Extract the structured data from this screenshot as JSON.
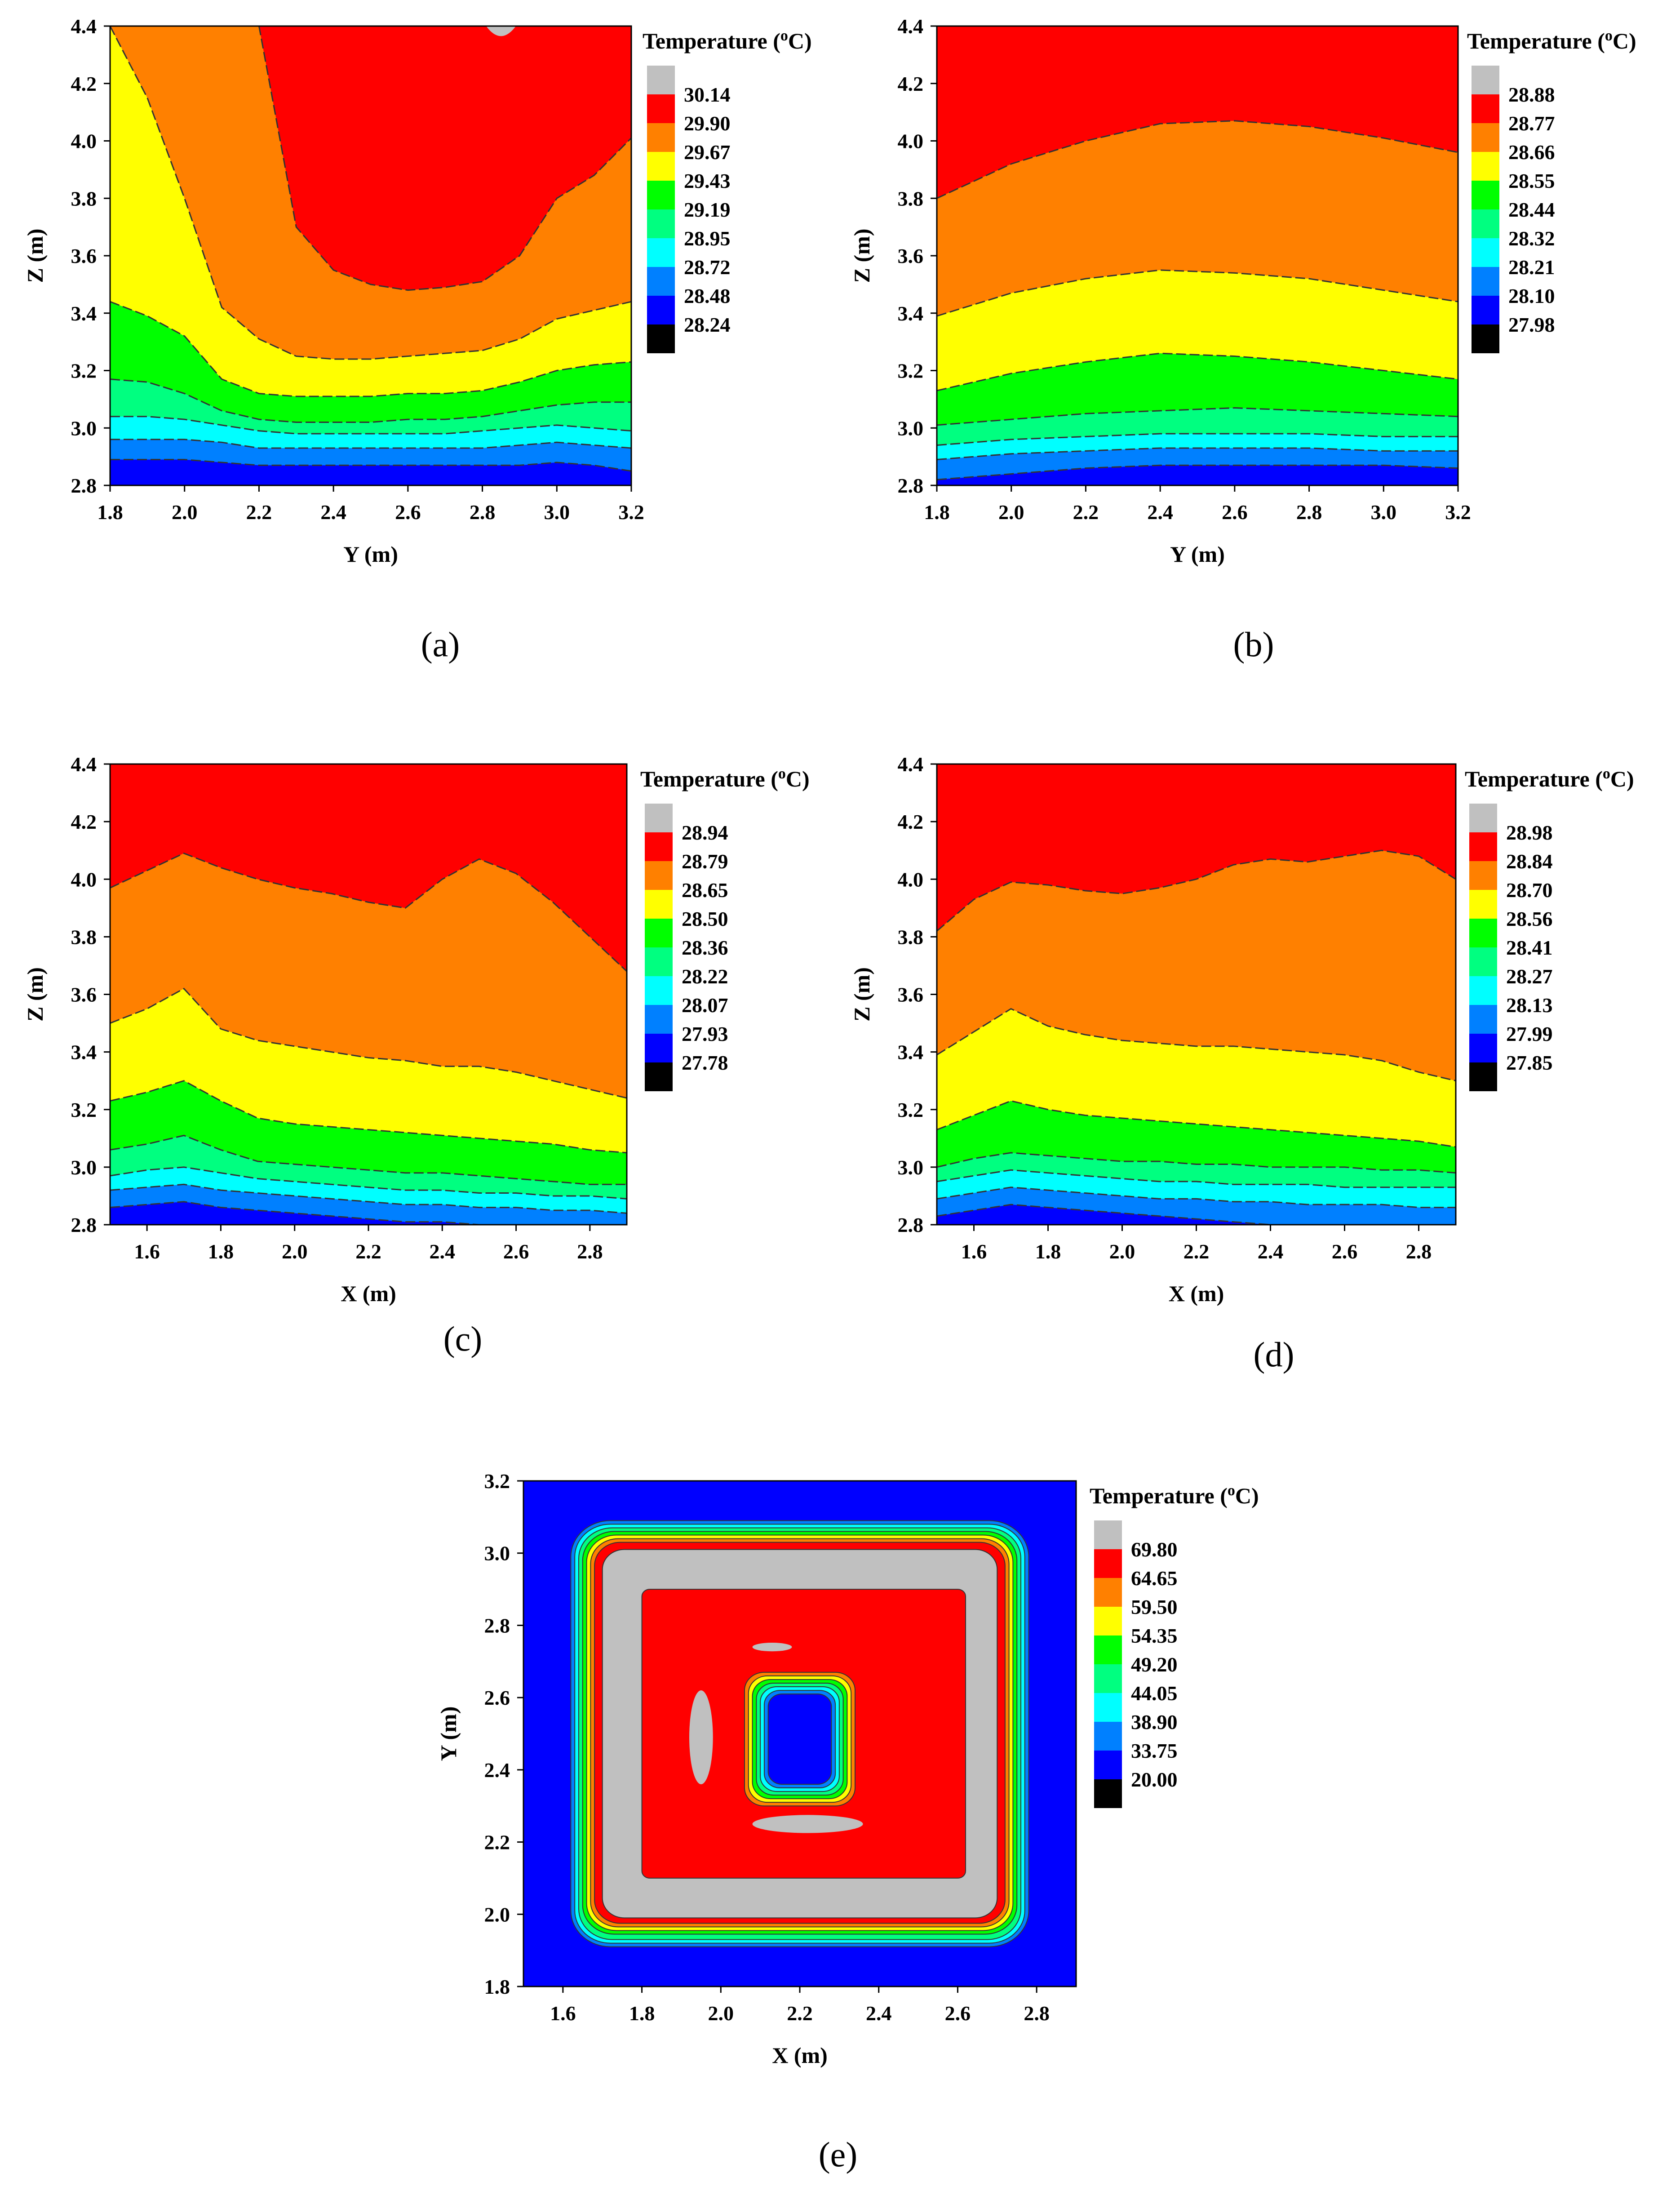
{
  "figure": {
    "captions": [
      "(a)",
      "(b)",
      "(c)",
      "(d)",
      "(e)"
    ]
  },
  "colors": {
    "bands": [
      "#000000",
      "#0000ff",
      "#0080ff",
      "#00ffff",
      "#00ff80",
      "#00ff00",
      "#ffff00",
      "#ff8000",
      "#ff0000",
      "#c0c0c0"
    ],
    "contour": "#333333"
  },
  "chart_data": [
    {
      "id": "a",
      "type": "heatmap",
      "subtype": "filled-contour",
      "caption": "(a)",
      "xlabel": "Y (m)",
      "ylabel": "Z (m)",
      "xlim": [
        1.8,
        3.2
      ],
      "ylim": [
        2.8,
        4.4
      ],
      "xticks": [
        "1.8",
        "2.0",
        "2.2",
        "2.4",
        "2.6",
        "2.8",
        "3.0",
        "3.2"
      ],
      "yticks": [
        "2.8",
        "3.0",
        "3.2",
        "3.4",
        "3.6",
        "3.8",
        "4.0",
        "4.2",
        "4.4"
      ],
      "legend_title": "Temperature (°C)",
      "levels": [
        "30.14",
        "29.90",
        "29.67",
        "29.43",
        "29.19",
        "28.95",
        "28.72",
        "28.48",
        "28.24"
      ],
      "band_boundaries_x": [
        1.8,
        1.9,
        2.0,
        2.1,
        2.2,
        2.3,
        2.4,
        2.5,
        2.6,
        2.7,
        2.8,
        2.9,
        3.0,
        3.1,
        3.2
      ],
      "band_boundaries_z": [
        [
          2.89,
          2.89,
          2.89,
          2.88,
          2.87,
          2.87,
          2.87,
          2.87,
          2.87,
          2.87,
          2.87,
          2.87,
          2.88,
          2.87,
          2.85
        ],
        [
          2.96,
          2.96,
          2.96,
          2.95,
          2.93,
          2.93,
          2.93,
          2.93,
          2.93,
          2.93,
          2.93,
          2.94,
          2.95,
          2.94,
          2.93
        ],
        [
          3.04,
          3.04,
          3.03,
          3.01,
          2.99,
          2.98,
          2.98,
          2.98,
          2.98,
          2.98,
          2.99,
          3.0,
          3.01,
          3.0,
          2.99
        ],
        [
          3.17,
          3.16,
          3.12,
          3.06,
          3.03,
          3.02,
          3.02,
          3.02,
          3.03,
          3.03,
          3.04,
          3.06,
          3.08,
          3.09,
          3.09
        ],
        [
          3.44,
          3.39,
          3.32,
          3.17,
          3.12,
          3.11,
          3.11,
          3.11,
          3.12,
          3.12,
          3.13,
          3.16,
          3.2,
          3.22,
          3.23
        ],
        [
          4.4,
          4.15,
          3.8,
          3.42,
          3.31,
          3.25,
          3.24,
          3.24,
          3.25,
          3.26,
          3.27,
          3.31,
          3.38,
          3.41,
          3.44
        ],
        [
          4.4,
          4.4,
          4.4,
          4.4,
          4.4,
          3.7,
          3.55,
          3.5,
          3.48,
          3.49,
          3.51,
          3.6,
          3.8,
          3.88,
          4.01
        ]
      ],
      "band_colors_from_bottom": [
        "#0000ff",
        "#0080ff",
        "#00ffff",
        "#00ff80",
        "#00ff00",
        "#ffff00",
        "#ff8000",
        "#ff0000"
      ]
    },
    {
      "id": "b",
      "type": "heatmap",
      "subtype": "filled-contour",
      "caption": "(b)",
      "xlabel": "Y (m)",
      "ylabel": "Z (m)",
      "xlim": [
        1.8,
        3.2
      ],
      "ylim": [
        2.8,
        4.4
      ],
      "xticks": [
        "1.8",
        "2.0",
        "2.2",
        "2.4",
        "2.6",
        "2.8",
        "3.0",
        "3.2"
      ],
      "yticks": [
        "2.8",
        "3.0",
        "3.2",
        "3.4",
        "3.6",
        "3.8",
        "4.0",
        "4.2",
        "4.4"
      ],
      "legend_title": "Temperature (°C)",
      "levels": [
        "28.88",
        "28.77",
        "28.66",
        "28.55",
        "28.44",
        "28.32",
        "28.21",
        "28.10",
        "27.98"
      ],
      "band_boundaries_x": [
        1.8,
        2.0,
        2.2,
        2.4,
        2.6,
        2.8,
        3.0,
        3.2
      ],
      "band_boundaries_z": [
        [
          2.82,
          2.84,
          2.86,
          2.87,
          2.87,
          2.87,
          2.87,
          2.86
        ],
        [
          2.89,
          2.91,
          2.92,
          2.93,
          2.93,
          2.93,
          2.92,
          2.92
        ],
        [
          2.94,
          2.96,
          2.97,
          2.98,
          2.98,
          2.98,
          2.97,
          2.97
        ],
        [
          3.01,
          3.03,
          3.05,
          3.06,
          3.07,
          3.06,
          3.05,
          3.04
        ],
        [
          3.13,
          3.19,
          3.23,
          3.26,
          3.25,
          3.23,
          3.2,
          3.17
        ],
        [
          3.39,
          3.47,
          3.52,
          3.55,
          3.54,
          3.52,
          3.48,
          3.44
        ],
        [
          3.8,
          3.92,
          4.0,
          4.06,
          4.07,
          4.05,
          4.01,
          3.96
        ]
      ],
      "band_colors_from_bottom": [
        "#0000ff",
        "#0080ff",
        "#00ffff",
        "#00ff80",
        "#00ff00",
        "#ffff00",
        "#ff8000",
        "#ff0000"
      ]
    },
    {
      "id": "c",
      "type": "heatmap",
      "subtype": "filled-contour",
      "caption": "(c)",
      "xlabel": "X (m)",
      "ylabel": "Z (m)",
      "xlim": [
        1.5,
        2.9
      ],
      "ylim": [
        2.8,
        4.4
      ],
      "xticks": [
        "1.6",
        "1.8",
        "2.0",
        "2.2",
        "2.4",
        "2.6",
        "2.8"
      ],
      "yticks": [
        "2.8",
        "3.0",
        "3.2",
        "3.4",
        "3.6",
        "3.8",
        "4.0",
        "4.2",
        "4.4"
      ],
      "legend_title": "Temperature (°C)",
      "levels": [
        "28.94",
        "28.79",
        "28.65",
        "28.50",
        "28.36",
        "28.22",
        "28.07",
        "27.93",
        "27.78"
      ],
      "band_boundaries_x": [
        1.5,
        1.6,
        1.7,
        1.8,
        1.9,
        2.0,
        2.1,
        2.2,
        2.3,
        2.4,
        2.5,
        2.6,
        2.7,
        2.8,
        2.9
      ],
      "band_boundaries_z": [
        [
          2.86,
          2.87,
          2.88,
          2.86,
          2.85,
          2.84,
          2.83,
          2.82,
          2.81,
          2.81,
          2.8,
          2.8,
          2.8,
          2.8,
          2.8
        ],
        [
          2.92,
          2.93,
          2.94,
          2.92,
          2.91,
          2.9,
          2.89,
          2.88,
          2.87,
          2.87,
          2.86,
          2.86,
          2.85,
          2.85,
          2.84
        ],
        [
          2.97,
          2.99,
          3.0,
          2.98,
          2.96,
          2.95,
          2.94,
          2.93,
          2.92,
          2.92,
          2.91,
          2.91,
          2.9,
          2.9,
          2.89
        ],
        [
          3.06,
          3.08,
          3.11,
          3.06,
          3.02,
          3.01,
          3.0,
          2.99,
          2.98,
          2.98,
          2.97,
          2.96,
          2.95,
          2.94,
          2.94
        ],
        [
          3.23,
          3.26,
          3.3,
          3.23,
          3.17,
          3.15,
          3.14,
          3.13,
          3.12,
          3.11,
          3.1,
          3.09,
          3.08,
          3.06,
          3.05
        ],
        [
          3.5,
          3.55,
          3.62,
          3.48,
          3.44,
          3.42,
          3.4,
          3.38,
          3.37,
          3.35,
          3.35,
          3.33,
          3.3,
          3.27,
          3.24
        ],
        [
          3.97,
          4.03,
          4.09,
          4.04,
          4.0,
          3.97,
          3.95,
          3.92,
          3.9,
          4.0,
          4.07,
          4.02,
          3.92,
          3.8,
          3.68
        ]
      ],
      "band_colors_from_bottom": [
        "#0000ff",
        "#0080ff",
        "#00ffff",
        "#00ff80",
        "#00ff00",
        "#ffff00",
        "#ff8000",
        "#ff0000"
      ]
    },
    {
      "id": "d",
      "type": "heatmap",
      "subtype": "filled-contour",
      "caption": "(d)",
      "xlabel": "X (m)",
      "ylabel": "Z (m)",
      "xlim": [
        1.5,
        2.9
      ],
      "ylim": [
        2.8,
        4.4
      ],
      "xticks": [
        "1.6",
        "1.8",
        "2.0",
        "2.2",
        "2.4",
        "2.6",
        "2.8"
      ],
      "yticks": [
        "2.8",
        "3.0",
        "3.2",
        "3.4",
        "3.6",
        "3.8",
        "4.0",
        "4.2",
        "4.4"
      ],
      "legend_title": "Temperature (°C)",
      "levels": [
        "28.98",
        "28.84",
        "28.70",
        "28.56",
        "28.41",
        "28.27",
        "28.13",
        "27.99",
        "27.85"
      ],
      "band_boundaries_x": [
        1.5,
        1.6,
        1.7,
        1.8,
        1.9,
        2.0,
        2.1,
        2.2,
        2.3,
        2.4,
        2.5,
        2.6,
        2.7,
        2.8,
        2.9
      ],
      "band_boundaries_z": [
        [
          2.83,
          2.85,
          2.87,
          2.86,
          2.85,
          2.84,
          2.83,
          2.82,
          2.81,
          2.8,
          2.8,
          2.8,
          2.8,
          2.8,
          2.8
        ],
        [
          2.89,
          2.91,
          2.93,
          2.92,
          2.91,
          2.9,
          2.89,
          2.89,
          2.88,
          2.88,
          2.87,
          2.87,
          2.87,
          2.86,
          2.86
        ],
        [
          2.95,
          2.97,
          2.99,
          2.98,
          2.97,
          2.96,
          2.95,
          2.95,
          2.94,
          2.94,
          2.94,
          2.93,
          2.93,
          2.93,
          2.93
        ],
        [
          3.0,
          3.03,
          3.05,
          3.04,
          3.03,
          3.02,
          3.02,
          3.01,
          3.01,
          3.0,
          3.0,
          3.0,
          2.99,
          2.99,
          2.98
        ],
        [
          3.13,
          3.18,
          3.23,
          3.2,
          3.18,
          3.17,
          3.16,
          3.15,
          3.14,
          3.13,
          3.12,
          3.11,
          3.1,
          3.09,
          3.07
        ],
        [
          3.39,
          3.47,
          3.55,
          3.49,
          3.46,
          3.44,
          3.43,
          3.42,
          3.42,
          3.41,
          3.4,
          3.39,
          3.37,
          3.33,
          3.3
        ],
        [
          3.82,
          3.93,
          3.99,
          3.98,
          3.96,
          3.95,
          3.97,
          4.0,
          4.05,
          4.07,
          4.06,
          4.08,
          4.1,
          4.08,
          4.0
        ]
      ],
      "band_colors_from_bottom": [
        "#0000ff",
        "#0080ff",
        "#00ffff",
        "#00ff80",
        "#00ff00",
        "#ffff00",
        "#ff8000",
        "#ff0000"
      ]
    },
    {
      "id": "e",
      "type": "heatmap",
      "subtype": "filled-contour",
      "caption": "(e)",
      "xlabel": "X (m)",
      "ylabel": "Y (m)",
      "xlim": [
        1.5,
        2.9
      ],
      "ylim": [
        1.8,
        3.2
      ],
      "xticks": [
        "1.6",
        "1.8",
        "2.0",
        "2.2",
        "2.4",
        "2.6",
        "2.8"
      ],
      "yticks": [
        "1.8",
        "2.0",
        "2.2",
        "2.4",
        "2.6",
        "2.8",
        "3.0",
        "3.2"
      ],
      "legend_title": "Temperature (°C)",
      "levels": [
        "69.80",
        "64.65",
        "59.50",
        "54.35",
        "49.20",
        "44.05",
        "38.90",
        "33.75",
        "20.00"
      ],
      "rings": [
        {
          "x": [
            1.62,
            2.78
          ],
          "y": [
            1.91,
            3.09
          ],
          "r": 0.1,
          "color": "#0080ff"
        },
        {
          "x": [
            1.63,
            2.77
          ],
          "y": [
            1.92,
            3.08
          ],
          "r": 0.09,
          "color": "#00ffff"
        },
        {
          "x": [
            1.64,
            2.76
          ],
          "y": [
            1.93,
            3.07
          ],
          "r": 0.085,
          "color": "#00ff80"
        },
        {
          "x": [
            1.65,
            2.75
          ],
          "y": [
            1.945,
            3.06
          ],
          "r": 0.08,
          "color": "#00ff00"
        },
        {
          "x": [
            1.66,
            2.74
          ],
          "y": [
            1.955,
            3.05
          ],
          "r": 0.075,
          "color": "#ffff00"
        },
        {
          "x": [
            1.67,
            2.73
          ],
          "y": [
            1.965,
            3.04
          ],
          "r": 0.07,
          "color": "#ff8000"
        },
        {
          "x": [
            1.68,
            2.72
          ],
          "y": [
            1.975,
            3.03
          ],
          "r": 0.065,
          "color": "#ff0000"
        },
        {
          "x": [
            1.7,
            2.7
          ],
          "y": [
            1.99,
            3.01
          ],
          "r": 0.055,
          "color": "#c0c0c0"
        },
        {
          "x": [
            1.8,
            2.62
          ],
          "y": [
            2.1,
            2.9
          ],
          "r": 0.02,
          "color": "#ff0000"
        },
        {
          "x": [
            2.06,
            2.34
          ],
          "y": [
            2.3,
            2.67
          ],
          "r": 0.05,
          "color": "#ff8000"
        },
        {
          "x": [
            2.07,
            2.33
          ],
          "y": [
            2.31,
            2.66
          ],
          "r": 0.048,
          "color": "#ffff00"
        },
        {
          "x": [
            2.08,
            2.32
          ],
          "y": [
            2.32,
            2.65
          ],
          "r": 0.046,
          "color": "#00ff00"
        },
        {
          "x": [
            2.09,
            2.31
          ],
          "y": [
            2.33,
            2.64
          ],
          "r": 0.044,
          "color": "#00ff80"
        },
        {
          "x": [
            2.1,
            2.3
          ],
          "y": [
            2.34,
            2.63
          ],
          "r": 0.042,
          "color": "#00ffff"
        },
        {
          "x": [
            2.11,
            2.29
          ],
          "y": [
            2.35,
            2.62
          ],
          "r": 0.04,
          "color": "#0080ff"
        },
        {
          "x": [
            2.12,
            2.28
          ],
          "y": [
            2.36,
            2.61
          ],
          "r": 0.035,
          "color": "#0000ff"
        }
      ],
      "blobs": [
        {
          "cx": 1.95,
          "cy": 2.49,
          "rx": 0.03,
          "ry": 0.13,
          "color": "#c0c0c0"
        },
        {
          "cx": 2.22,
          "cy": 2.25,
          "rx": 0.14,
          "ry": 0.025,
          "color": "#c0c0c0"
        },
        {
          "cx": 2.13,
          "cy": 2.74,
          "rx": 0.05,
          "ry": 0.012,
          "color": "#c0c0c0"
        }
      ]
    }
  ]
}
